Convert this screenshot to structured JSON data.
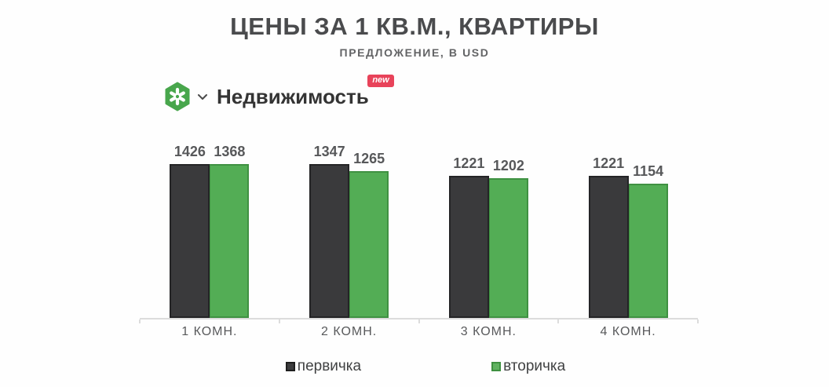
{
  "header": {
    "title": "ЦЕНЫ ЗА 1 КВ.М., КВАРТИРЫ",
    "subtitle": "ПРЕДЛОЖЕНИЕ, В USD"
  },
  "brand": {
    "name": "Недвижимость",
    "badge": "new",
    "logo_icon": "hexagon-snowflake-icon",
    "chevron_icon": "chevron-down-icon",
    "logo_color": "#48a64c"
  },
  "colors": {
    "background": "#fefefe",
    "primary_bar": "#3a3a3c",
    "primary_bar_border": "#242426",
    "secondary_bar": "#53ad55",
    "secondary_bar_border": "#3f9142",
    "badge": "#e8435a",
    "axis_line": "#dcdcdc",
    "title_text": "#4a4b4d",
    "value_text": "#57585a"
  },
  "chart_data": {
    "type": "bar",
    "title": "ЦЕНЫ ЗА 1 КВ.М., КВАРТИРЫ",
    "subtitle": "ПРЕДЛОЖЕНИЕ, В USD",
    "categories": [
      "1 КОМН.",
      "2 КОМН.",
      "3 КОМН.",
      "4 КОМН."
    ],
    "series": [
      {
        "name": "первичка",
        "color": "#3a3a3c",
        "values": [
          1426,
          1347,
          1221,
          1221
        ]
      },
      {
        "name": "вторичка",
        "color": "#53ad55",
        "values": [
          1368,
          1265,
          1202,
          1154
        ]
      }
    ],
    "value_labels": true,
    "xlabel": "",
    "ylabel": "",
    "ylim": [
      0,
      1500
    ],
    "grid": false,
    "legend_position": "bottom"
  },
  "legend": {
    "items": [
      {
        "label": "первичка",
        "color": "#3a3a3c"
      },
      {
        "label": "вторичка",
        "color": "#53ad55"
      }
    ]
  }
}
